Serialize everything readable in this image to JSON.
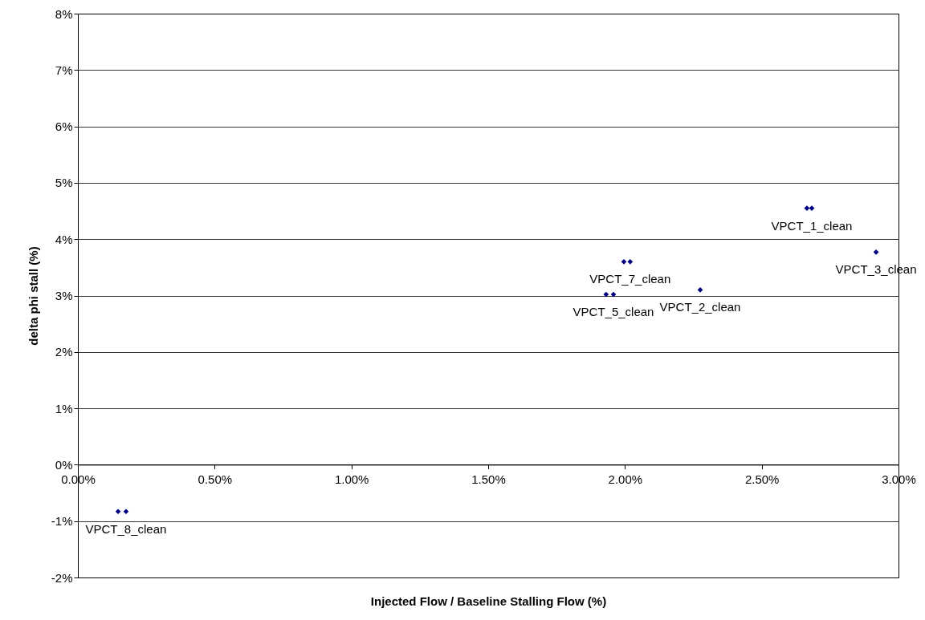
{
  "chart_data": {
    "type": "scatter",
    "xlabel": "Injected Flow / Baseline Stalling Flow (%)",
    "ylabel": "delta phi stall (%)",
    "series": [
      {
        "color": "#000080",
        "x": [
          0.147,
          0.176,
          1.931,
          1.958,
          1.996,
          2.019,
          2.275,
          2.665,
          2.683,
          2.918
        ],
        "values": [
          -0.83,
          -0.83,
          3.02,
          3.02,
          3.6,
          3.6,
          3.1,
          4.55,
          4.55,
          3.77
        ]
      }
    ],
    "annotations": [
      {
        "text": "VPCT_8_clean",
        "x": 0.176,
        "y": -0.83
      },
      {
        "text": "VPCT_5_clean",
        "x": 1.958,
        "y": 3.02
      },
      {
        "text": "VPCT_7_clean",
        "x": 2.019,
        "y": 3.6
      },
      {
        "text": "VPCT_2_clean",
        "x": 2.275,
        "y": 3.1
      },
      {
        "text": "VPCT_1_clean",
        "x": 2.683,
        "y": 4.55
      },
      {
        "text": "VPCT_3_clean",
        "x": 2.918,
        "y": 3.77
      }
    ],
    "xlim": [
      0,
      3
    ],
    "ylim": [
      -2,
      8
    ],
    "xticks": [
      {
        "value": 0,
        "label": "0.00%"
      },
      {
        "value": 0.5,
        "label": "0.50%"
      },
      {
        "value": 1,
        "label": "1.00%"
      },
      {
        "value": 1.5,
        "label": "1.50%"
      },
      {
        "value": 2,
        "label": "2.00%"
      },
      {
        "value": 2.5,
        "label": "2.50%"
      },
      {
        "value": 3,
        "label": "3.00%"
      }
    ],
    "yticks": [
      {
        "value": -2,
        "label": "-2%"
      },
      {
        "value": -1,
        "label": "-1%"
      },
      {
        "value": 0,
        "label": "0%"
      },
      {
        "value": 1,
        "label": "1%"
      },
      {
        "value": 2,
        "label": "2%"
      },
      {
        "value": 3,
        "label": "3%"
      },
      {
        "value": 4,
        "label": "4%"
      },
      {
        "value": 5,
        "label": "5%"
      },
      {
        "value": 6,
        "label": "6%"
      },
      {
        "value": 7,
        "label": "7%"
      },
      {
        "value": 8,
        "label": "8%"
      }
    ],
    "grid": "y",
    "marker": "diamond",
    "legend": false
  }
}
